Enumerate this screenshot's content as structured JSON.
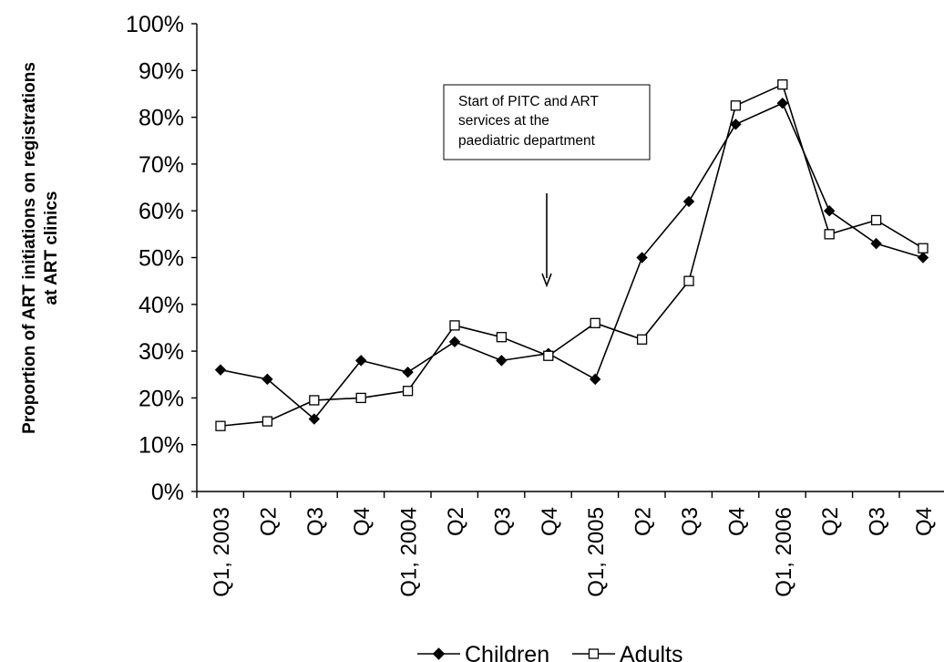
{
  "chart_data": {
    "type": "line",
    "title": "",
    "xlabel": "",
    "ylabel": [
      "Proportion of ART initiations on registrations",
      "at ART clinics"
    ],
    "ylim": [
      0,
      100
    ],
    "y_ticks": [
      "0%",
      "10%",
      "20%",
      "30%",
      "40%",
      "50%",
      "60%",
      "70%",
      "80%",
      "90%",
      "100%"
    ],
    "categories": [
      "Q1, 2003",
      "Q2",
      "Q3",
      "Q4",
      "Q1, 2004",
      "Q2",
      "Q3",
      "Q4",
      "Q1, 2005",
      "Q2",
      "Q3",
      "Q4",
      "Q1, 2006",
      "Q2",
      "Q3",
      "Q4"
    ],
    "series": [
      {
        "name": "Children",
        "marker": "filled-diamond",
        "values": [
          26,
          24,
          15.5,
          28,
          25.5,
          32,
          28,
          29.5,
          24,
          50,
          62,
          78.5,
          83,
          60,
          53,
          50
        ]
      },
      {
        "name": "Adults",
        "marker": "open-square",
        "values": [
          14,
          15,
          19.5,
          20,
          21.5,
          35.5,
          33,
          29,
          36,
          32.5,
          45,
          82.5,
          87,
          55,
          58,
          52
        ]
      }
    ],
    "annotation": {
      "lines": [
        "Start of PITC and ART",
        "services at the",
        "paediatric department"
      ],
      "at_category_index": 7
    },
    "grid": false,
    "legend_position": "bottom-center"
  },
  "colors": {
    "line": "#000000",
    "background": "#ffffff"
  }
}
